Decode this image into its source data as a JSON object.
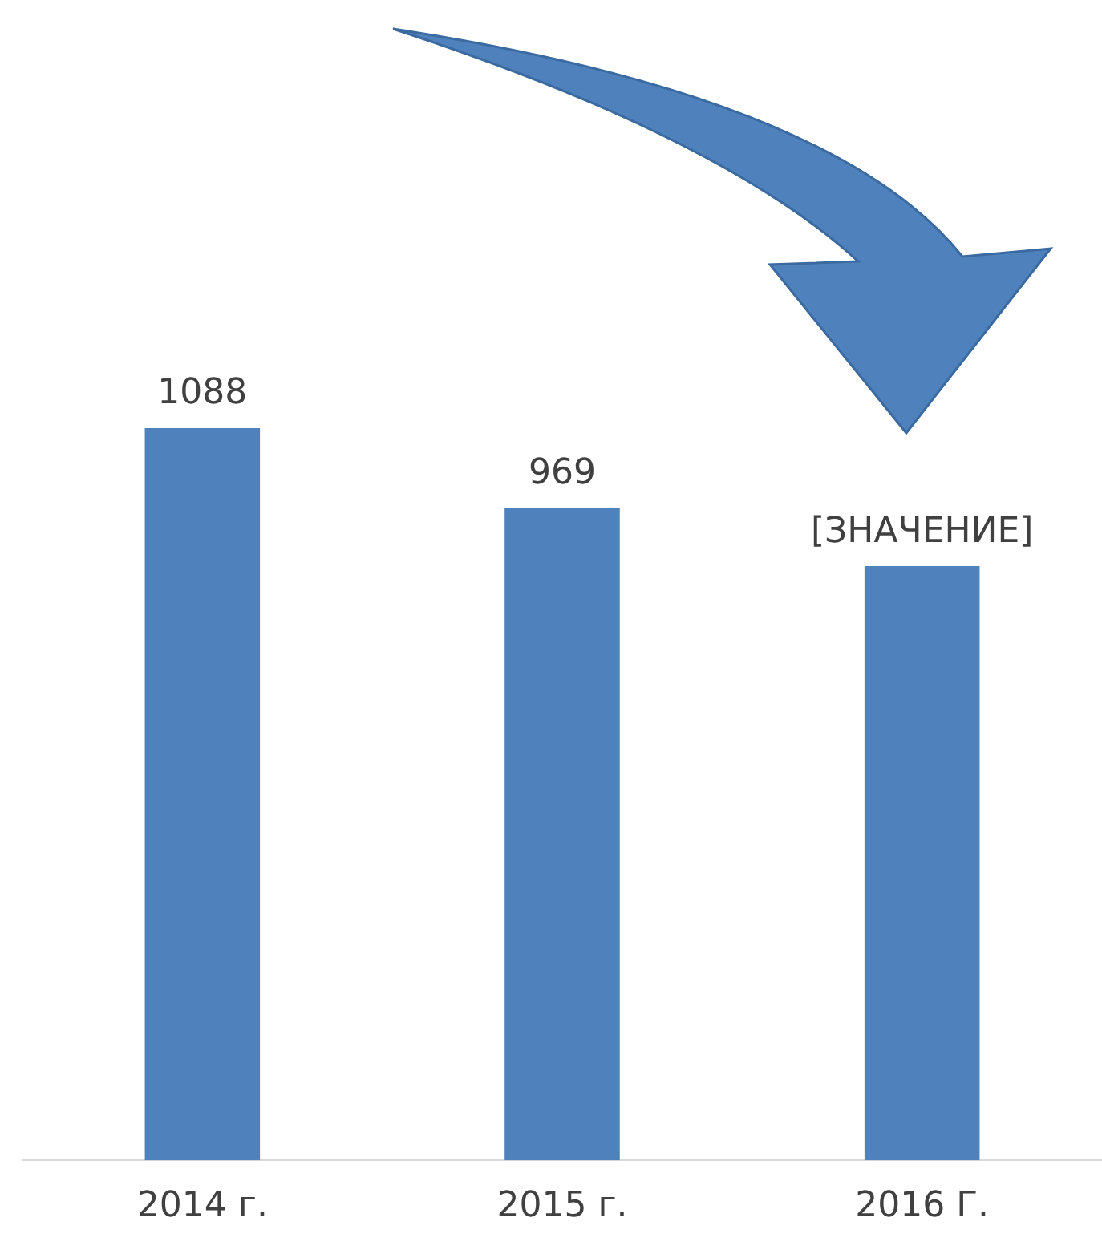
{
  "chart_data": {
    "type": "bar",
    "categories": [
      "2014 г.",
      "2015 г.",
      "2016 Г."
    ],
    "values": [
      1088,
      969,
      883
    ],
    "value_labels": [
      "1088",
      "969",
      "[ЗНАЧЕНИЕ]"
    ],
    "color": "#4f81bd",
    "tick_labels": "x",
    "grid": false,
    "legend": false
  }
}
